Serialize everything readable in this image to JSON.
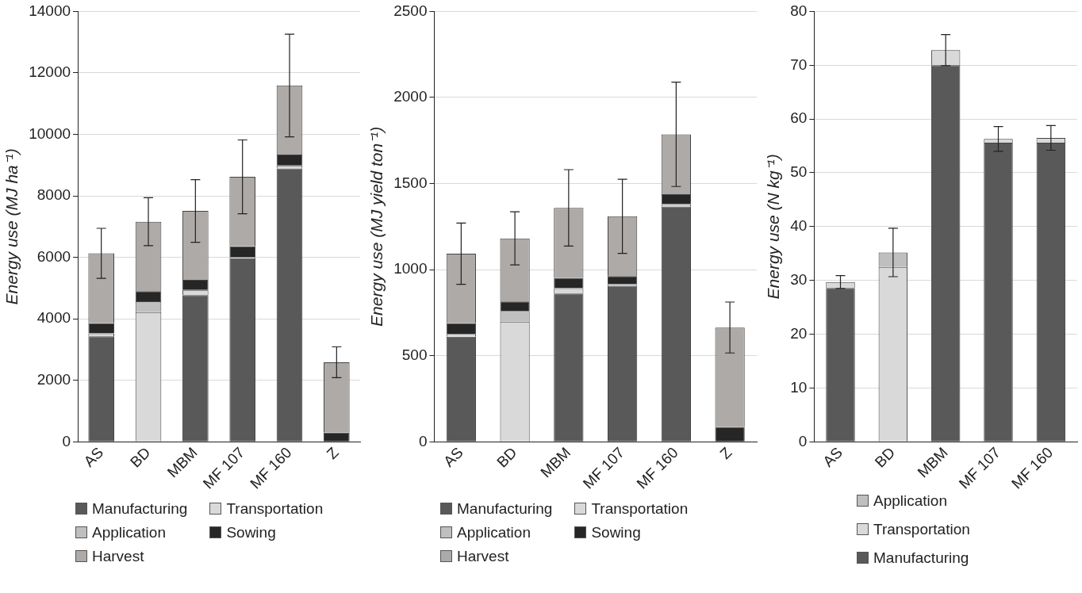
{
  "chart_data": [
    {
      "type": "bar",
      "stacked": true,
      "ylabel": "Energy use (MJ ha⁻¹)",
      "categories": [
        "AS",
        "BD",
        "MBM",
        "MF 107",
        "MF 160",
        "Z"
      ],
      "ylim": [
        0,
        14000
      ],
      "yticks": [
        0,
        2000,
        4000,
        6000,
        8000,
        10000,
        12000,
        14000
      ],
      "grid": "y",
      "legend": "bottom",
      "series": [
        {
          "name": "Manufacturing",
          "color": "#595959",
          "values": [
            3430,
            0,
            4770,
            5970,
            8890,
            0
          ]
        },
        {
          "name": "Transportation",
          "color": "#d9d9d9",
          "values": [
            100,
            4220,
            170,
            40,
            100,
            0
          ]
        },
        {
          "name": "Application",
          "color": "#bfbfbf",
          "values": [
            0,
            350,
            0,
            0,
            0,
            0
          ]
        },
        {
          "name": "Sowing",
          "color": "#262626",
          "values": [
            330,
            330,
            330,
            350,
            350,
            300
          ]
        },
        {
          "name": "Harvest",
          "color": "#aeaaa8",
          "values": [
            2270,
            2260,
            2240,
            2260,
            2250,
            2290
          ],
          "errors": [
            815,
            780,
            1020,
            1200,
            1670,
            500
          ]
        }
      ]
    },
    {
      "type": "bar",
      "stacked": true,
      "ylabel": "Energy use (MJ yield ton⁻¹)",
      "categories": [
        "AS",
        "BD",
        "MBM",
        "MF 107",
        "MF 160",
        "Z"
      ],
      "ylim": [
        0,
        2500
      ],
      "yticks": [
        0,
        500,
        1000,
        1500,
        2000,
        2500
      ],
      "grid": "y",
      "legend": "bottom",
      "series": [
        {
          "name": "Manufacturing",
          "color": "#595959",
          "values": [
            611,
            0,
            862,
            906,
            1367,
            0
          ]
        },
        {
          "name": "Transportation",
          "color": "#d9d9d9",
          "values": [
            16,
            698,
            30,
            9,
            14,
            0
          ]
        },
        {
          "name": "Application",
          "color": "#bfbfbf",
          "values": [
            0,
            62,
            0,
            0,
            0,
            0
          ]
        },
        {
          "name": "Sowing",
          "color": "#262626",
          "values": [
            63,
            55,
            60,
            48,
            57,
            87
          ]
        },
        {
          "name": "Harvest",
          "color": "#aeaaa8",
          "values": [
            403,
            367,
            407,
            347,
            348,
            577
          ],
          "errors": [
            178,
            154,
            222,
            215,
            303,
            148
          ]
        }
      ]
    },
    {
      "type": "bar",
      "stacked": true,
      "ylabel": "Energy use (N kg⁻¹)",
      "categories": [
        "AS",
        "BD",
        "MBM",
        "MF 107",
        "MF 160"
      ],
      "ylim": [
        0,
        80
      ],
      "yticks": [
        0,
        10,
        20,
        30,
        40,
        50,
        60,
        70,
        80
      ],
      "grid": "y",
      "legend": "bottom",
      "series": [
        {
          "name": "Manufacturing",
          "color": "#595959",
          "values": [
            28.6,
            0,
            70.0,
            55.6,
            55.6
          ]
        },
        {
          "name": "Transportation",
          "color": "#d9d9d9",
          "values": [
            1.1,
            32.5,
            2.8,
            0.7,
            0.9
          ],
          "errors": [
            1.2,
            null,
            2.9,
            2.3,
            2.3
          ]
        },
        {
          "name": "Application",
          "color": "#bfbfbf",
          "values": [
            null,
            2.7,
            0,
            0,
            0
          ],
          "errors": [
            null,
            4.5,
            null,
            null,
            null
          ]
        }
      ]
    }
  ]
}
